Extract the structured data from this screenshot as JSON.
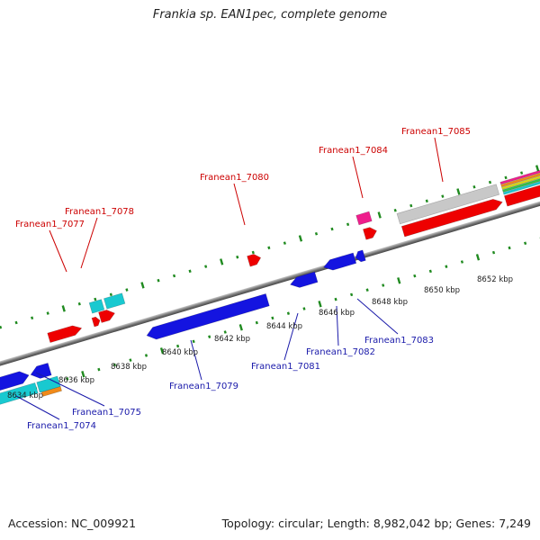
{
  "title": "Frankia sp. EAN1pec, complete genome",
  "footer": {
    "accession": "Accession: NC_009921",
    "summary": "Topology: circular; Length: 8,982,042 bp; Genes: 7,249"
  },
  "colors": {
    "forward_label": "#cc0000",
    "reverse_label": "#1a1aaa",
    "tick": "#1f8a1f",
    "backbone": "#7a7a7a",
    "red": "#ee0000",
    "blue": "#1414e0",
    "cyan": "#19c9d0",
    "magenta": "#ee1e8c",
    "gray": "#c8c8c8",
    "orange": "#f08a1a"
  },
  "scale_labels": [
    "8634 kbp",
    "8636 kbp",
    "8638 kbp",
    "8640 kbp",
    "8642 kbp",
    "8644 kbp",
    "8646 kbp",
    "8648 kbp",
    "8650 kbp",
    "8652 kbp"
  ],
  "gene_labels": {
    "forward": [
      "Franean1_7077",
      "Franean1_7078",
      "Franean1_7080",
      "Franean1_7084",
      "Franean1_7085"
    ],
    "reverse": [
      "Franean1_7074",
      "Franean1_7075",
      "Franean1_7079",
      "Franean1_7081",
      "Franean1_7082",
      "Franean1_7083"
    ]
  }
}
